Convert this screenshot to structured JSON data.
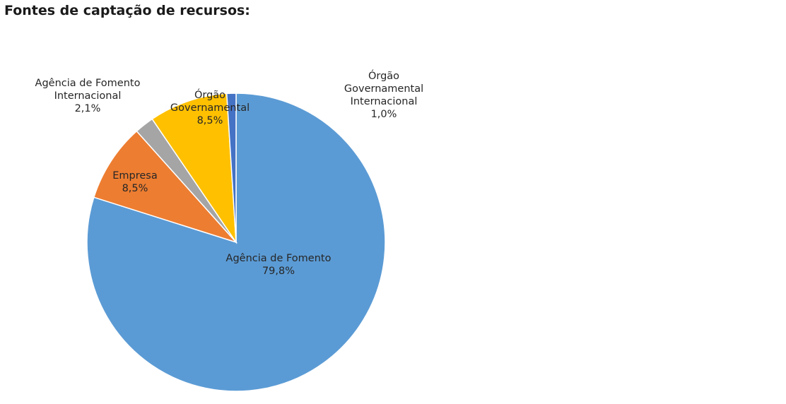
{
  "chart_data": {
    "type": "pie",
    "title": "Fontes de captação de recursos:",
    "slices": [
      {
        "label_lines": [
          "Agência de Fomento"
        ],
        "value": 79.8,
        "value_label": "79,8%",
        "color": "#5b9bd5"
      },
      {
        "label_lines": [
          "Empresa"
        ],
        "value": 8.5,
        "value_label": "8,5%",
        "color": "#ed7d31"
      },
      {
        "label_lines": [
          "Agência de Fomento",
          "Internacional"
        ],
        "value": 2.1,
        "value_label": "2,1%",
        "color": "#a5a5a5"
      },
      {
        "label_lines": [
          "Órgão",
          "Governamental"
        ],
        "value": 8.5,
        "value_label": "8,5%",
        "color": "#ffc000"
      },
      {
        "label_lines": [
          "Órgão",
          "Governamental",
          "Internacional"
        ],
        "value": 1.0,
        "value_label": "1,0%",
        "color": "#4472c4"
      }
    ]
  }
}
